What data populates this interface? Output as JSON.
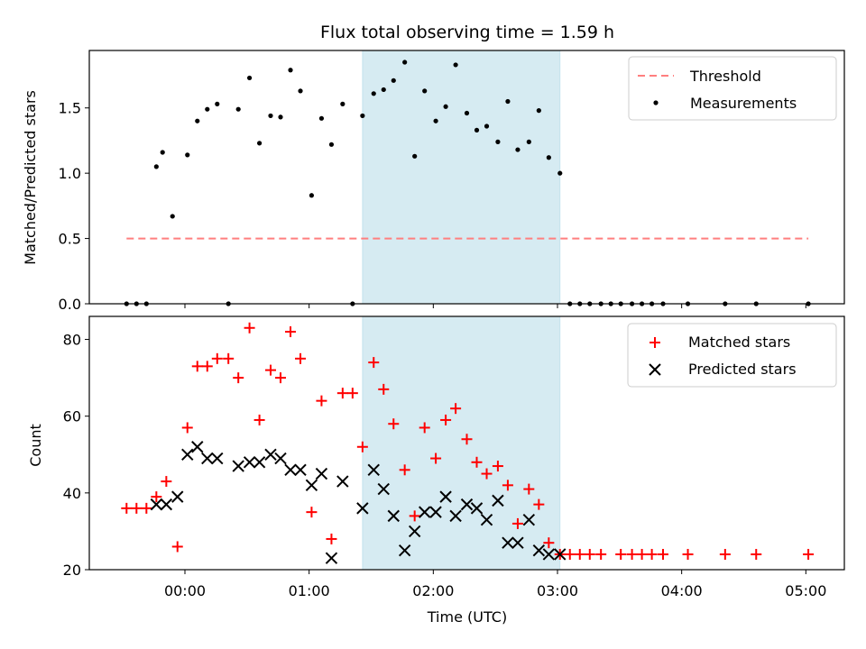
{
  "chart_data": {
    "type": "scatter",
    "title": "Flux total observing time = 1.59 h",
    "xlabel": "Time (UTC)",
    "x_ticks": [
      "00:00",
      "01:00",
      "02:00",
      "03:00",
      "04:00",
      "05:00"
    ],
    "highlight_span": {
      "start_h": 1.43,
      "end_h": 3.02,
      "color": "#add8e6"
    },
    "panels": [
      {
        "ylabel": "Matched/Predicted stars",
        "ylim": [
          0,
          1.94
        ],
        "y_ticks": [
          "0.0",
          "0.5",
          "1.0",
          "1.5"
        ],
        "y_tick_values": [
          0,
          0.5,
          1.0,
          1.5
        ],
        "legend": {
          "placement": "upper right",
          "entries": [
            "Threshold",
            "Measurements"
          ]
        },
        "series": [
          {
            "name": "Threshold",
            "kind": "dashed-line",
            "color": "#ff7f7f",
            "x": [
              -0.47,
              5.02
            ],
            "y": [
              0.5,
              0.5
            ]
          },
          {
            "name": "Measurements",
            "kind": "dot",
            "color": "#000000",
            "x": [
              -0.47,
              -0.39,
              -0.31,
              -0.23,
              -0.18,
              -0.1,
              0.02,
              0.1,
              0.18,
              0.26,
              0.35,
              0.43,
              0.52,
              0.6,
              0.69,
              0.77,
              0.85,
              0.93,
              1.02,
              1.1,
              1.18,
              1.27,
              1.35,
              1.43,
              1.52,
              1.6,
              1.68,
              1.77,
              1.85,
              1.93,
              2.02,
              2.1,
              2.18,
              2.27,
              2.35,
              2.43,
              2.52,
              2.6,
              2.68,
              2.77,
              2.85,
              2.93,
              3.02,
              3.1,
              3.18,
              3.26,
              3.35,
              3.43,
              3.51,
              3.6,
              3.68,
              3.76,
              3.85,
              4.05,
              4.35,
              4.6,
              5.02
            ],
            "y": [
              0.0,
              0.0,
              0.0,
              1.05,
              1.16,
              0.67,
              1.14,
              1.4,
              1.49,
              1.53,
              0.0,
              1.49,
              1.73,
              1.23,
              1.44,
              1.43,
              1.79,
              1.63,
              0.83,
              1.42,
              1.22,
              1.53,
              0.0,
              1.44,
              1.61,
              1.64,
              1.71,
              1.85,
              1.13,
              1.63,
              1.4,
              1.51,
              1.83,
              1.46,
              1.33,
              1.36,
              1.24,
              1.55,
              1.18,
              1.24,
              1.48,
              1.12,
              1.0,
              0.0,
              0.0,
              0.0,
              0.0,
              0.0,
              0.0,
              0.0,
              0.0,
              0.0,
              0.0,
              0.0,
              0.0,
              0.0,
              0.0
            ]
          }
        ]
      },
      {
        "ylabel": "Count",
        "ylim": [
          20,
          86
        ],
        "y_ticks": [
          "20",
          "40",
          "60",
          "80"
        ],
        "y_tick_values": [
          20,
          40,
          60,
          80
        ],
        "legend": {
          "placement": "upper right",
          "entries": [
            "Matched stars",
            "Predicted stars"
          ]
        },
        "series": [
          {
            "name": "Matched stars",
            "kind": "plus",
            "color": "#ff0000",
            "x": [
              -0.47,
              -0.39,
              -0.31,
              -0.23,
              -0.15,
              -0.06,
              0.02,
              0.1,
              0.18,
              0.26,
              0.35,
              0.43,
              0.52,
              0.6,
              0.69,
              0.77,
              0.85,
              0.93,
              1.02,
              1.1,
              1.18,
              1.27,
              1.35,
              1.43,
              1.52,
              1.6,
              1.68,
              1.77,
              1.85,
              1.93,
              2.02,
              2.1,
              2.18,
              2.27,
              2.35,
              2.43,
              2.52,
              2.6,
              2.68,
              2.77,
              2.85,
              2.93,
              3.02,
              3.1,
              3.18,
              3.26,
              3.35,
              3.51,
              3.6,
              3.68,
              3.76,
              3.85,
              4.05,
              4.35,
              4.6,
              5.02
            ],
            "y": [
              36,
              36,
              36,
              39,
              43,
              26,
              57,
              73,
              73,
              75,
              75,
              70,
              83,
              59,
              72,
              70,
              82,
              75,
              35,
              64,
              28,
              66,
              66,
              52,
              74,
              67,
              58,
              46,
              34,
              57,
              49,
              59,
              62,
              54,
              48,
              45,
              47,
              42,
              32,
              41,
              37,
              27,
              24,
              24,
              24,
              24,
              24,
              24,
              24,
              24,
              24,
              24,
              24,
              24,
              24,
              24
            ]
          },
          {
            "name": "Predicted stars",
            "kind": "x",
            "color": "#000000",
            "x": [
              -0.23,
              -0.15,
              -0.06,
              0.02,
              0.1,
              0.18,
              0.26,
              0.43,
              0.52,
              0.6,
              0.69,
              0.77,
              0.85,
              0.93,
              1.02,
              1.1,
              1.18,
              1.27,
              1.43,
              1.52,
              1.6,
              1.68,
              1.77,
              1.85,
              1.93,
              2.02,
              2.1,
              2.18,
              2.27,
              2.35,
              2.43,
              2.52,
              2.6,
              2.68,
              2.77,
              2.85,
              2.93,
              3.02
            ],
            "y": [
              37,
              37,
              39,
              50,
              52,
              49,
              49,
              47,
              48,
              48,
              50,
              49,
              46,
              46,
              42,
              45,
              23,
              43,
              36,
              46,
              41,
              34,
              25,
              30,
              35,
              35,
              39,
              34,
              37,
              36,
              33,
              38,
              27,
              27,
              33,
              25,
              24,
              24
            ]
          }
        ]
      }
    ]
  }
}
